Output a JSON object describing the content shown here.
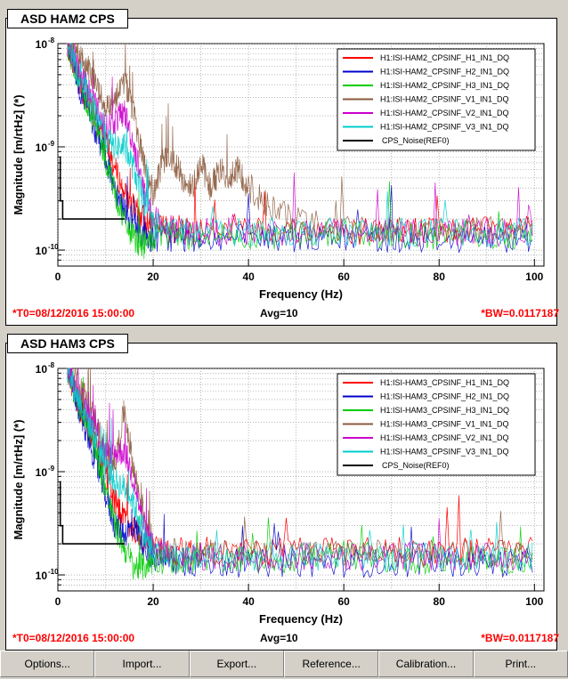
{
  "panels": [
    {
      "title": "ASD HAM2 CPS",
      "footer": {
        "t0": "*T0=08/12/2016 15:00:00",
        "avg": "Avg=10",
        "bw": "*BW=0.0117187"
      }
    },
    {
      "title": "ASD HAM3 CPS",
      "footer": {
        "t0": "*T0=08/12/2016 15:00:00",
        "avg": "Avg=10",
        "bw": "*BW=0.0117187"
      }
    }
  ],
  "buttons": [
    "Options...",
    "Import...",
    "Export...",
    "Reference...",
    "Calibration...",
    "Print..."
  ],
  "chart_data": [
    {
      "type": "line",
      "xlabel": "Frequency (Hz)",
      "ylabel": "Magnitude [m/rtHz] (*)",
      "xlim": [
        0,
        102
      ],
      "ylim": [
        7e-11,
        1e-08
      ],
      "yscale": "log",
      "grid": true,
      "legend": "top-right",
      "x_ticks": [
        0,
        20,
        40,
        60,
        80,
        100
      ],
      "y_ticks": [
        {
          "value": 1e-10,
          "label": "10",
          "exp": "-10"
        },
        {
          "value": 1e-09,
          "label": "10",
          "exp": "-9"
        },
        {
          "value": 1e-08,
          "label": "10",
          "exp": "-8"
        }
      ],
      "series": [
        {
          "name": "H1:ISI-HAM2_CPSINF_H1_IN1_DQ",
          "color": "#ff0000",
          "x": [
            2,
            4,
            6,
            8,
            10,
            12,
            14,
            16,
            18,
            20,
            25,
            30,
            40,
            50,
            60,
            70,
            80,
            90,
            100
          ],
          "y": [
            1e-08,
            5e-09,
            3e-09,
            1.8e-09,
            1.1e-09,
            6e-10,
            3.5e-10,
            2.5e-10,
            2e-10,
            1.7e-10,
            1.6e-10,
            1.6e-10,
            1.55e-10,
            1.55e-10,
            1.55e-10,
            1.55e-10,
            1.55e-10,
            1.55e-10,
            1.55e-10
          ]
        },
        {
          "name": "H1:ISI-HAM2_CPSINF_H2_IN1_DQ",
          "color": "#0000cc",
          "x": [
            2,
            4,
            6,
            8,
            10,
            12,
            14,
            16,
            18,
            20,
            25,
            30,
            40,
            50,
            60,
            70,
            80,
            90,
            100
          ],
          "y": [
            1e-08,
            4.5e-09,
            2.5e-09,
            1.4e-09,
            8e-10,
            4e-10,
            2.5e-10,
            1.8e-10,
            1.4e-10,
            1.3e-10,
            1.3e-10,
            1.3e-10,
            1.3e-10,
            1.3e-10,
            1.3e-10,
            1.3e-10,
            1.3e-10,
            1.3e-10,
            1.3e-10
          ]
        },
        {
          "name": "H1:ISI-HAM2_CPSINF_H3_IN1_DQ",
          "color": "#00cc00",
          "x": [
            2,
            4,
            6,
            8,
            10,
            12,
            14,
            16,
            18,
            20,
            25,
            30,
            40,
            50,
            60,
            70,
            80,
            90,
            100
          ],
          "y": [
            1e-08,
            5e-09,
            2.8e-09,
            1.5e-09,
            8e-10,
            3.5e-10,
            1.9e-10,
            1.3e-10,
            1.1e-10,
            1.3e-10,
            1.4e-10,
            1.4e-10,
            1.4e-10,
            1.4e-10,
            1.5e-10,
            1.4e-10,
            1.4e-10,
            1.4e-10,
            1.4e-10
          ]
        },
        {
          "name": "H1:ISI-HAM2_CPSINF_V1_IN1_DQ",
          "color": "#8b5a3c",
          "x": [
            2,
            4,
            6,
            8,
            10,
            12,
            14,
            16,
            18,
            20,
            22,
            24,
            26,
            28,
            30,
            32,
            34,
            36,
            38,
            40,
            45,
            50,
            60,
            70,
            80,
            90,
            100
          ],
          "y": [
            1e-08,
            8e-09,
            6e-09,
            4e-09,
            2.5e-09,
            3e-09,
            4.5e-09,
            2e-09,
            7e-10,
            3.5e-10,
            7e-10,
            8e-10,
            5e-10,
            4e-10,
            7e-10,
            4e-10,
            6e-10,
            5e-10,
            6e-10,
            4e-10,
            2.5e-10,
            2e-10,
            1.6e-10,
            1.6e-10,
            1.6e-10,
            1.6e-10,
            1.6e-10
          ]
        },
        {
          "name": "H1:ISI-HAM2_CPSINF_V2_IN1_DQ",
          "color": "#cc00cc",
          "x": [
            2,
            4,
            6,
            8,
            10,
            12,
            14,
            16,
            18,
            20,
            25,
            30,
            40,
            50,
            60,
            70,
            80,
            90,
            100
          ],
          "y": [
            1e-08,
            6e-09,
            4e-09,
            2.5e-09,
            1.5e-09,
            1.8e-09,
            2.2e-09,
            1e-09,
            4e-10,
            2e-10,
            1.5e-10,
            1.5e-10,
            1.5e-10,
            1.5e-10,
            1.5e-10,
            1.5e-10,
            1.5e-10,
            1.5e-10,
            1.5e-10
          ]
        },
        {
          "name": "H1:ISI-HAM2_CPSINF_V3_IN1_DQ",
          "color": "#00cccc",
          "x": [
            2,
            4,
            6,
            8,
            10,
            12,
            14,
            16,
            18,
            20,
            25,
            30,
            40,
            50,
            60,
            70,
            80,
            90,
            100
          ],
          "y": [
            1e-08,
            5.5e-09,
            3.5e-09,
            2e-09,
            1.2e-09,
            1e-09,
            1e-09,
            6e-10,
            3e-10,
            1.8e-10,
            1.5e-10,
            1.5e-10,
            1.5e-10,
            1.5e-10,
            1.5e-10,
            1.5e-10,
            1.5e-10,
            1.5e-10,
            1.5e-10
          ]
        },
        {
          "name": "CPS_Noise(REF0)",
          "color": "#000000",
          "step": true,
          "x": [
            0.5,
            0.5,
            1,
            1,
            14
          ],
          "y": [
            8e-10,
            3e-10,
            3e-10,
            2e-10,
            2e-10
          ]
        }
      ]
    },
    {
      "type": "line",
      "xlabel": "Frequency (Hz)",
      "ylabel": "Magnitude [m/rtHz] (*)",
      "xlim": [
        0,
        102
      ],
      "ylim": [
        7e-11,
        1e-08
      ],
      "yscale": "log",
      "grid": true,
      "legend": "top-right",
      "x_ticks": [
        0,
        20,
        40,
        60,
        80,
        100
      ],
      "y_ticks": [
        {
          "value": 1e-10,
          "label": "10",
          "exp": "-10"
        },
        {
          "value": 1e-09,
          "label": "10",
          "exp": "-9"
        },
        {
          "value": 1e-08,
          "label": "10",
          "exp": "-8"
        }
      ],
      "series": [
        {
          "name": "H1:ISI-HAM3_CPSINF_H1_IN1_DQ",
          "color": "#ff0000",
          "x": [
            2,
            4,
            6,
            8,
            10,
            12,
            14,
            16,
            18,
            20,
            25,
            30,
            40,
            50,
            60,
            70,
            80,
            90,
            100
          ],
          "y": [
            1e-08,
            5e-09,
            3e-09,
            1.8e-09,
            1e-09,
            5e-10,
            3.5e-10,
            2.8e-10,
            2.2e-10,
            1.8e-10,
            1.7e-10,
            1.7e-10,
            1.7e-10,
            1.7e-10,
            1.8e-10,
            1.7e-10,
            1.7e-10,
            1.7e-10,
            1.7e-10
          ]
        },
        {
          "name": "H1:ISI-HAM3_CPSINF_H2_IN1_DQ",
          "color": "#0000cc",
          "x": [
            2,
            4,
            6,
            8,
            10,
            12,
            14,
            16,
            18,
            20,
            25,
            30,
            40,
            50,
            60,
            70,
            80,
            90,
            100
          ],
          "y": [
            1e-08,
            4.5e-09,
            2.5e-09,
            1.2e-09,
            6e-10,
            3e-10,
            2.5e-10,
            3e-10,
            2e-10,
            1.4e-10,
            1.3e-10,
            1.3e-10,
            1.3e-10,
            1.3e-10,
            1.3e-10,
            1.3e-10,
            1.3e-10,
            1.3e-10,
            1.3e-10
          ]
        },
        {
          "name": "H1:ISI-HAM3_CPSINF_H3_IN1_DQ",
          "color": "#00cc00",
          "x": [
            2,
            4,
            6,
            8,
            10,
            12,
            14,
            16,
            18,
            20,
            25,
            30,
            40,
            50,
            60,
            70,
            80,
            90,
            100
          ],
          "y": [
            1e-08,
            5e-09,
            3e-09,
            1.5e-09,
            7e-10,
            3e-10,
            1.8e-10,
            1.2e-10,
            1.2e-10,
            1.4e-10,
            1.4e-10,
            1.4e-10,
            1.4e-10,
            1.4e-10,
            1.6e-10,
            1.4e-10,
            1.4e-10,
            1.4e-10,
            1.4e-10
          ]
        },
        {
          "name": "H1:ISI-HAM3_CPSINF_V1_IN1_DQ",
          "color": "#8b5a3c",
          "x": [
            2,
            4,
            6,
            8,
            10,
            12,
            14,
            16,
            18,
            20,
            25,
            30,
            40,
            50,
            60,
            70,
            80,
            90,
            100
          ],
          "y": [
            1e-08,
            8e-09,
            5e-09,
            3e-09,
            1.5e-09,
            1.2e-09,
            4e-09,
            1e-09,
            4e-10,
            2e-10,
            1.6e-10,
            1.6e-10,
            1.6e-10,
            1.6e-10,
            1.6e-10,
            1.6e-10,
            1.6e-10,
            1.6e-10,
            1.6e-10
          ]
        },
        {
          "name": "H1:ISI-HAM3_CPSINF_V2_IN1_DQ",
          "color": "#cc00cc",
          "x": [
            2,
            4,
            6,
            8,
            10,
            12,
            14,
            16,
            18,
            20,
            25,
            30,
            40,
            50,
            60,
            70,
            80,
            90,
            100
          ],
          "y": [
            1e-08,
            6e-09,
            4e-09,
            2.5e-09,
            1.5e-09,
            1.5e-09,
            1.6e-09,
            8e-10,
            3e-10,
            1.8e-10,
            1.5e-10,
            1.5e-10,
            1.5e-10,
            1.5e-10,
            1.5e-10,
            1.5e-10,
            1.5e-10,
            1.5e-10,
            1.5e-10
          ]
        },
        {
          "name": "H1:ISI-HAM3_CPSINF_V3_IN1_DQ",
          "color": "#00cccc",
          "x": [
            2,
            4,
            6,
            8,
            10,
            12,
            14,
            16,
            18,
            20,
            25,
            30,
            40,
            50,
            60,
            70,
            80,
            90,
            100
          ],
          "y": [
            1e-08,
            5.5e-09,
            3.5e-09,
            2e-09,
            1.1e-09,
            8e-10,
            7e-10,
            5e-10,
            2.5e-10,
            1.6e-10,
            1.5e-10,
            1.5e-10,
            1.5e-10,
            1.5e-10,
            1.5e-10,
            1.5e-10,
            1.5e-10,
            1.5e-10,
            1.5e-10
          ]
        },
        {
          "name": "CPS_Noise(REF0)",
          "color": "#000000",
          "step": true,
          "x": [
            0.5,
            0.5,
            1,
            1,
            14
          ],
          "y": [
            8e-10,
            3e-10,
            3e-10,
            2e-10,
            2e-10
          ]
        }
      ]
    }
  ]
}
